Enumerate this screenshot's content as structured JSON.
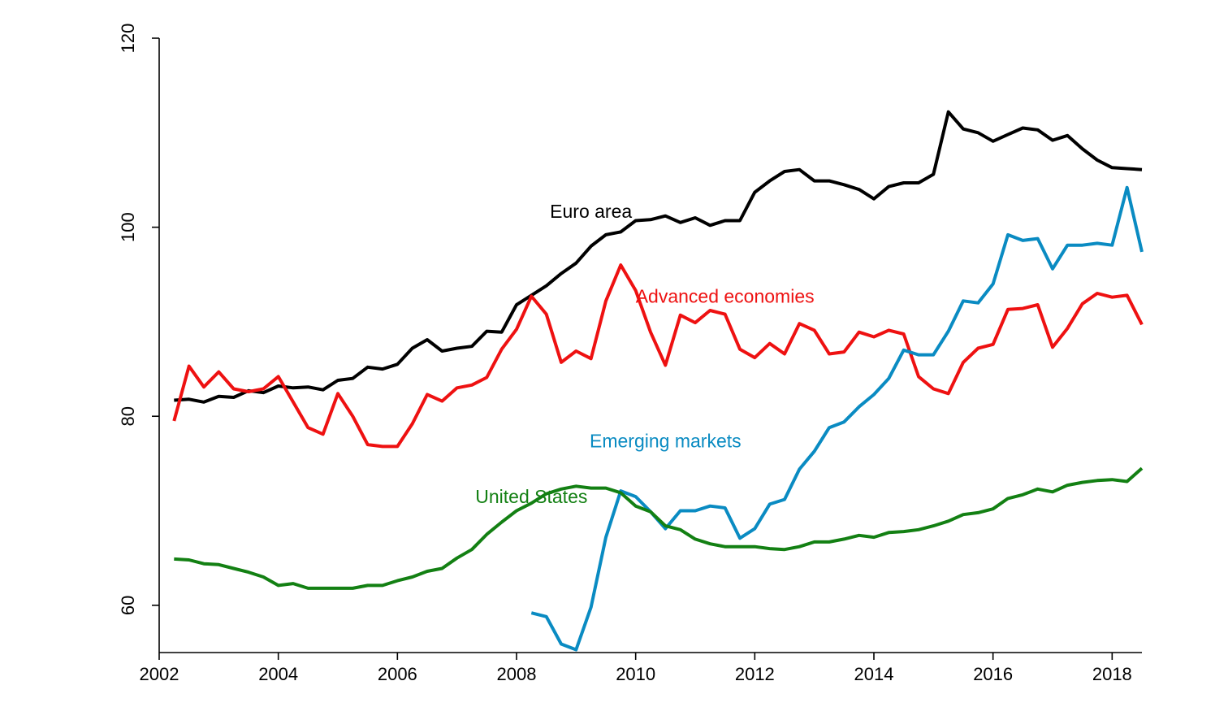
{
  "chart_data": {
    "type": "line",
    "title": "",
    "xlabel": "",
    "ylabel": "",
    "xlim": [
      2002,
      2018.5
    ],
    "ylim": [
      55,
      120
    ],
    "xticks": [
      2002,
      2004,
      2006,
      2008,
      2010,
      2012,
      2014,
      2016,
      2018
    ],
    "yticks": [
      60,
      80,
      100,
      120
    ],
    "grid": false,
    "legend": "none",
    "series": [
      {
        "name": "Euro area",
        "color": "#000000",
        "x": [
          2002.25,
          2002.5,
          2002.75,
          2003.0,
          2003.25,
          2003.5,
          2003.75,
          2004.0,
          2004.25,
          2004.5,
          2004.75,
          2005.0,
          2005.25,
          2005.5,
          2005.75,
          2006.0,
          2006.25,
          2006.5,
          2006.75,
          2007.0,
          2007.25,
          2007.5,
          2007.75,
          2008.0,
          2008.25,
          2008.5,
          2008.75,
          2009.0,
          2009.25,
          2009.5,
          2009.75,
          2010.0,
          2010.25,
          2010.5,
          2010.75,
          2011.0,
          2011.25,
          2011.5,
          2011.75,
          2012.0,
          2012.25,
          2012.5,
          2012.75,
          2013.0,
          2013.25,
          2013.5,
          2013.75,
          2014.0,
          2014.25,
          2014.5,
          2014.75,
          2015.0,
          2015.25,
          2015.5,
          2015.75,
          2016.0,
          2016.25,
          2016.5,
          2016.75,
          2017.0,
          2017.25,
          2017.5,
          2017.75,
          2018.0,
          2018.25,
          2018.5
        ],
        "values": [
          81.7,
          81.8,
          81.5,
          82.1,
          82.0,
          82.7,
          82.5,
          83.2,
          83.0,
          83.1,
          82.8,
          83.8,
          84.0,
          85.2,
          85.0,
          85.5,
          87.2,
          88.1,
          86.9,
          87.2,
          87.4,
          89.0,
          88.9,
          91.8,
          92.8,
          93.8,
          95.1,
          96.2,
          98.0,
          99.2,
          99.5,
          100.7,
          100.8,
          101.2,
          100.5,
          101.0,
          100.2,
          100.7,
          100.7,
          103.7,
          104.9,
          105.9,
          106.1,
          104.9,
          104.9,
          104.5,
          104.0,
          103.0,
          104.3,
          104.7,
          104.7,
          105.6,
          112.2,
          110.4,
          110.0,
          109.1,
          109.8,
          110.5,
          110.3,
          109.2,
          109.7,
          108.3,
          107.1,
          106.3,
          106.2,
          106.1
        ]
      },
      {
        "name": "Advanced economies",
        "color": "#ee1111",
        "x": [
          2002.25,
          2002.5,
          2002.75,
          2003.0,
          2003.25,
          2003.5,
          2003.75,
          2004.0,
          2004.25,
          2004.5,
          2004.75,
          2005.0,
          2005.25,
          2005.5,
          2005.75,
          2006.0,
          2006.25,
          2006.5,
          2006.75,
          2007.0,
          2007.25,
          2007.5,
          2007.75,
          2008.0,
          2008.25,
          2008.5,
          2008.75,
          2009.0,
          2009.25,
          2009.5,
          2009.75,
          2010.0,
          2010.25,
          2010.5,
          2010.75,
          2011.0,
          2011.25,
          2011.5,
          2011.75,
          2012.0,
          2012.25,
          2012.5,
          2012.75,
          2013.0,
          2013.25,
          2013.5,
          2013.75,
          2014.0,
          2014.25,
          2014.5,
          2014.75,
          2015.0,
          2015.25,
          2015.5,
          2015.75,
          2016.0,
          2016.25,
          2016.5,
          2016.75,
          2017.0,
          2017.25,
          2017.5,
          2017.75,
          2018.0,
          2018.25,
          2018.5
        ],
        "values": [
          79.5,
          85.3,
          83.1,
          84.7,
          82.9,
          82.6,
          82.9,
          84.2,
          81.5,
          78.8,
          78.1,
          82.4,
          80.0,
          77.0,
          76.8,
          76.8,
          79.2,
          82.3,
          81.6,
          83.0,
          83.3,
          84.1,
          87.1,
          89.2,
          92.7,
          90.8,
          85.7,
          86.9,
          86.1,
          92.2,
          96.0,
          93.3,
          88.9,
          85.4,
          90.7,
          89.9,
          91.2,
          90.8,
          87.1,
          86.2,
          87.7,
          86.6,
          89.8,
          89.1,
          86.6,
          86.8,
          88.9,
          88.4,
          89.1,
          88.7,
          84.2,
          82.9,
          82.4,
          85.7,
          87.2,
          87.6,
          91.3,
          91.4,
          91.8,
          87.3,
          89.3,
          91.9,
          93.0,
          92.6,
          92.8,
          89.7
        ]
      },
      {
        "name": "Emerging markets",
        "color": "#0a8bc2",
        "x": [
          2008.25,
          2008.5,
          2008.75,
          2009.0,
          2009.25,
          2009.5,
          2009.75,
          2010.0,
          2010.25,
          2010.5,
          2010.75,
          2011.0,
          2011.25,
          2011.5,
          2011.75,
          2012.0,
          2012.25,
          2012.5,
          2012.75,
          2013.0,
          2013.25,
          2013.5,
          2013.75,
          2014.0,
          2014.25,
          2014.5,
          2014.75,
          2015.0,
          2015.25,
          2015.5,
          2015.75,
          2016.0,
          2016.25,
          2016.5,
          2016.75,
          2017.0,
          2017.25,
          2017.5,
          2017.75,
          2018.0,
          2018.25,
          2018.5
        ],
        "values": [
          59.2,
          58.8,
          55.9,
          55.3,
          59.8,
          67.2,
          72.1,
          71.5,
          69.9,
          68.1,
          70.0,
          70.0,
          70.5,
          70.3,
          67.1,
          68.1,
          70.7,
          71.2,
          74.4,
          76.3,
          78.8,
          79.4,
          81.0,
          82.3,
          84.0,
          87.0,
          86.5,
          86.5,
          89.0,
          92.2,
          92.0,
          94.0,
          99.2,
          98.6,
          98.8,
          95.6,
          98.1,
          98.1,
          98.3,
          98.1,
          104.2,
          97.4
        ]
      },
      {
        "name": "United States",
        "color": "#138013",
        "x": [
          2002.25,
          2002.5,
          2002.75,
          2003.0,
          2003.25,
          2003.5,
          2003.75,
          2004.0,
          2004.25,
          2004.5,
          2004.75,
          2005.0,
          2005.25,
          2005.5,
          2005.75,
          2006.0,
          2006.25,
          2006.5,
          2006.75,
          2007.0,
          2007.25,
          2007.5,
          2007.75,
          2008.0,
          2008.25,
          2008.5,
          2008.75,
          2009.0,
          2009.25,
          2009.5,
          2009.75,
          2010.0,
          2010.25,
          2010.5,
          2010.75,
          2011.0,
          2011.25,
          2011.5,
          2011.75,
          2012.0,
          2012.25,
          2012.5,
          2012.75,
          2013.0,
          2013.25,
          2013.5,
          2013.75,
          2014.0,
          2014.25,
          2014.5,
          2014.75,
          2015.0,
          2015.25,
          2015.5,
          2015.75,
          2016.0,
          2016.25,
          2016.5,
          2016.75,
          2017.0,
          2017.25,
          2017.5,
          2017.75,
          2018.0,
          2018.25,
          2018.5
        ],
        "values": [
          64.9,
          64.8,
          64.4,
          64.3,
          63.9,
          63.5,
          63.0,
          62.1,
          62.3,
          61.8,
          61.8,
          61.8,
          61.8,
          62.1,
          62.1,
          62.6,
          63.0,
          63.6,
          63.9,
          65.0,
          65.9,
          67.5,
          68.8,
          70.0,
          70.8,
          71.8,
          72.3,
          72.6,
          72.4,
          72.4,
          71.9,
          70.5,
          69.9,
          68.4,
          68.0,
          67.0,
          66.5,
          66.2,
          66.2,
          66.2,
          66.0,
          65.9,
          66.2,
          66.7,
          66.7,
          67.0,
          67.4,
          67.2,
          67.7,
          67.8,
          68.0,
          68.4,
          68.9,
          69.6,
          69.8,
          70.2,
          71.3,
          71.7,
          72.3,
          72.0,
          72.7,
          73.0,
          73.2,
          73.3,
          73.1,
          74.5
        ]
      }
    ],
    "annotations": [
      {
        "text": "Euro area",
        "color": "#000000",
        "x": 2009.25,
        "y": 101.0,
        "series": 0
      },
      {
        "text": "Advanced economies",
        "color": "#ee1111",
        "x": 2011.5,
        "y": 92.0,
        "series": 1
      },
      {
        "text": "Emerging markets",
        "color": "#0a8bc2",
        "x": 2010.5,
        "y": 76.7,
        "series": 2
      },
      {
        "text": "United States",
        "color": "#138013",
        "x": 2008.25,
        "y": 70.8,
        "series": 3
      }
    ]
  }
}
